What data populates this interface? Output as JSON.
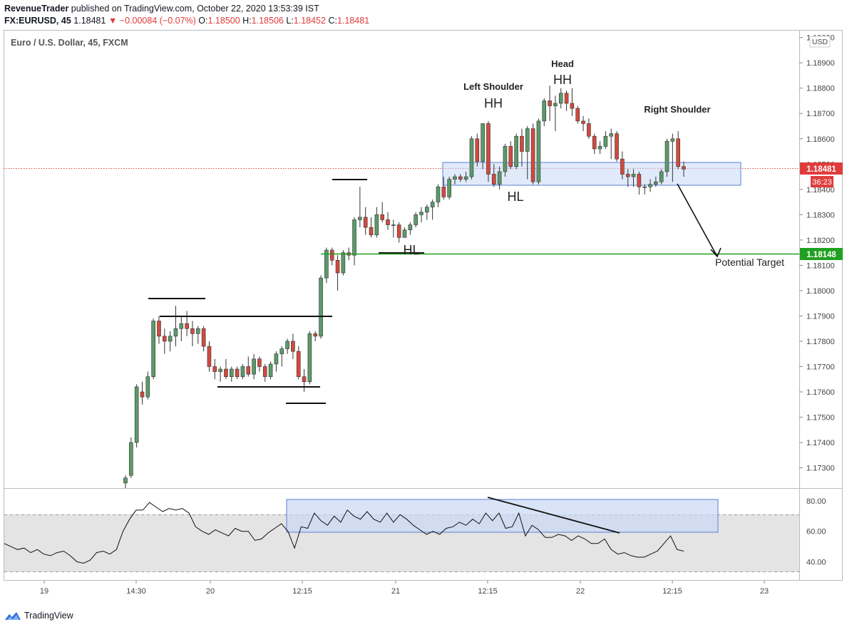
{
  "header": {
    "publisher": "RevenueTrader",
    "published_text": " published on TradingView.com, October 22, 2020 13:53:39 IST",
    "symbol": "FX:EURUSD, 45",
    "last": "1.18481",
    "change": "▼ −0.00084 (−0.07%)",
    "o_label": "O:",
    "o_val": "1.18500",
    "h_label": "H:",
    "h_val": "1.18506",
    "l_label": "L:",
    "l_val": "1.18452",
    "c_label": "C:",
    "c_val": "1.18481"
  },
  "chart_title": "Euro / U.S. Dollar, 45, FXCM",
  "currency_label": "USD",
  "price_badge": {
    "value": "1.18481",
    "timer": "36:23",
    "color": "#e03c3c"
  },
  "target_badge": {
    "value": "1.18148",
    "color": "#20a020"
  },
  "annotations": {
    "left_shoulder": "Left Shoulder",
    "head": "Head",
    "right_shoulder": "Right Shoulder",
    "hh1": "HH",
    "hh2": "HH",
    "hl1": "HL",
    "hl2": "HL",
    "potential_target": "Potential Target"
  },
  "footer": {
    "brand": "TradingView"
  },
  "colors": {
    "up": "#5a9a6a",
    "down": "#d24a3e",
    "box_fill": "#c9d8f5",
    "box_stroke": "#5a7fd6",
    "target_line": "#20a020"
  },
  "chart_data": {
    "type": "candlestick",
    "title": "Euro / U.S. Dollar, 45, FXCM",
    "price_axis": {
      "ticks": [
        "1.19000",
        "1.18900",
        "1.18800",
        "1.18700",
        "1.18600",
        "1.18500",
        "1.18400",
        "1.18300",
        "1.18200",
        "1.18100",
        "1.18000",
        "1.17900",
        "1.17800",
        "1.17700",
        "1.17600",
        "1.17500",
        "1.17400",
        "1.17300"
      ],
      "range": [
        1.1722,
        1.1903
      ]
    },
    "time_axis": {
      "ticks": [
        "19",
        "14:30",
        "20",
        "12:15",
        "21",
        "12:15",
        "22",
        "12:15",
        "23"
      ]
    },
    "candles": [
      [
        1.1724,
        1.1727,
        1.1722,
        1.1726
      ],
      [
        1.1727,
        1.1742,
        1.1726,
        1.174
      ],
      [
        1.174,
        1.1763,
        1.1738,
        1.1762
      ],
      [
        1.176,
        1.1764,
        1.1755,
        1.1758
      ],
      [
        1.1758,
        1.1768,
        1.1757,
        1.1766
      ],
      [
        1.1766,
        1.1789,
        1.1765,
        1.1788
      ],
      [
        1.1788,
        1.179,
        1.1779,
        1.1782
      ],
      [
        1.1782,
        1.1785,
        1.1775,
        1.178
      ],
      [
        1.178,
        1.1784,
        1.1776,
        1.1782
      ],
      [
        1.1782,
        1.1794,
        1.1778,
        1.1785
      ],
      [
        1.1785,
        1.179,
        1.178,
        1.1787
      ],
      [
        1.1787,
        1.1792,
        1.1782,
        1.1785
      ],
      [
        1.1785,
        1.1788,
        1.1778,
        1.1783
      ],
      [
        1.1783,
        1.1786,
        1.1779,
        1.1785
      ],
      [
        1.1785,
        1.1786,
        1.1776,
        1.1778
      ],
      [
        1.1778,
        1.178,
        1.1768,
        1.177
      ],
      [
        1.177,
        1.1773,
        1.1765,
        1.1768
      ],
      [
        1.1768,
        1.177,
        1.1764,
        1.1769
      ],
      [
        1.1769,
        1.1773,
        1.1765,
        1.1766
      ],
      [
        1.1766,
        1.177,
        1.1764,
        1.1769
      ],
      [
        1.1769,
        1.177,
        1.1765,
        1.1766
      ],
      [
        1.1766,
        1.1771,
        1.1765,
        1.177
      ],
      [
        1.177,
        1.1774,
        1.1766,
        1.1767
      ],
      [
        1.1767,
        1.1775,
        1.1765,
        1.1773
      ],
      [
        1.1773,
        1.1774,
        1.1768,
        1.177
      ],
      [
        1.177,
        1.1771,
        1.1764,
        1.1766
      ],
      [
        1.1766,
        1.1772,
        1.1765,
        1.1771
      ],
      [
        1.1771,
        1.1776,
        1.1768,
        1.1775
      ],
      [
        1.1775,
        1.1778,
        1.177,
        1.1777
      ],
      [
        1.1777,
        1.1781,
        1.1775,
        1.178
      ],
      [
        1.178,
        1.1783,
        1.1773,
        1.1776
      ],
      [
        1.1776,
        1.1778,
        1.1765,
        1.1766
      ],
      [
        1.1766,
        1.1769,
        1.176,
        1.1764
      ],
      [
        1.1764,
        1.1784,
        1.1763,
        1.1783
      ],
      [
        1.1783,
        1.1784,
        1.178,
        1.1782
      ],
      [
        1.1782,
        1.1806,
        1.1781,
        1.1805
      ],
      [
        1.1805,
        1.1817,
        1.1803,
        1.1816
      ],
      [
        1.1816,
        1.1817,
        1.181,
        1.1812
      ],
      [
        1.1812,
        1.1814,
        1.18,
        1.1807
      ],
      [
        1.1807,
        1.1816,
        1.1806,
        1.1815
      ],
      [
        1.1815,
        1.1817,
        1.1812,
        1.1814
      ],
      [
        1.1814,
        1.1829,
        1.181,
        1.1828
      ],
      [
        1.1828,
        1.1841,
        1.1825,
        1.1829
      ],
      [
        1.1829,
        1.1833,
        1.1822,
        1.1825
      ],
      [
        1.1825,
        1.1829,
        1.1821,
        1.1822
      ],
      [
        1.1822,
        1.1833,
        1.1821,
        1.183
      ],
      [
        1.183,
        1.1835,
        1.1827,
        1.1828
      ],
      [
        1.1828,
        1.1831,
        1.1824,
        1.1826
      ],
      [
        1.1826,
        1.1828,
        1.1821,
        1.1826
      ],
      [
        1.1826,
        1.1827,
        1.1819,
        1.1821
      ],
      [
        1.1821,
        1.1825,
        1.1821,
        1.1824
      ],
      [
        1.1824,
        1.1827,
        1.1822,
        1.1826
      ],
      [
        1.1826,
        1.1831,
        1.1825,
        1.183
      ],
      [
        1.183,
        1.1833,
        1.1827,
        1.1831
      ],
      [
        1.1831,
        1.1834,
        1.1828,
        1.1833
      ],
      [
        1.1833,
        1.1836,
        1.1828,
        1.1835
      ],
      [
        1.1835,
        1.1842,
        1.1833,
        1.1841
      ],
      [
        1.1841,
        1.1845,
        1.1836,
        1.1837
      ],
      [
        1.1837,
        1.1845,
        1.1836,
        1.1844
      ],
      [
        1.1844,
        1.1846,
        1.1842,
        1.1845
      ],
      [
        1.1845,
        1.1846,
        1.1843,
        1.1844
      ],
      [
        1.1844,
        1.1847,
        1.1843,
        1.1845
      ],
      [
        1.1845,
        1.1861,
        1.1844,
        1.186
      ],
      [
        1.186,
        1.1862,
        1.1849,
        1.1851
      ],
      [
        1.1851,
        1.1866,
        1.1848,
        1.1866
      ],
      [
        1.1866,
        1.1867,
        1.1843,
        1.1846
      ],
      [
        1.1846,
        1.185,
        1.1841,
        1.1842
      ],
      [
        1.1842,
        1.1849,
        1.184,
        1.1847
      ],
      [
        1.1847,
        1.1858,
        1.1845,
        1.1857
      ],
      [
        1.1857,
        1.1859,
        1.1848,
        1.1849
      ],
      [
        1.1849,
        1.1862,
        1.1848,
        1.1861
      ],
      [
        1.1861,
        1.1864,
        1.1849,
        1.1855
      ],
      [
        1.1855,
        1.1865,
        1.1844,
        1.1864
      ],
      [
        1.1864,
        1.1866,
        1.1842,
        1.1843
      ],
      [
        1.1843,
        1.1868,
        1.1842,
        1.1867
      ],
      [
        1.1867,
        1.1876,
        1.1865,
        1.1875
      ],
      [
        1.1875,
        1.1881,
        1.1867,
        1.1873
      ],
      [
        1.1873,
        1.1877,
        1.1863,
        1.1874
      ],
      [
        1.1874,
        1.188,
        1.1872,
        1.1878
      ],
      [
        1.1878,
        1.1879,
        1.1871,
        1.1874
      ],
      [
        1.1874,
        1.188,
        1.1869,
        1.1872
      ],
      [
        1.1872,
        1.1873,
        1.1866,
        1.1867
      ],
      [
        1.1867,
        1.1869,
        1.1863,
        1.1866
      ],
      [
        1.1866,
        1.1868,
        1.186,
        1.1861
      ],
      [
        1.1861,
        1.1862,
        1.1854,
        1.1856
      ],
      [
        1.1856,
        1.1859,
        1.1854,
        1.1857
      ],
      [
        1.1857,
        1.1863,
        1.1856,
        1.1861
      ],
      [
        1.1861,
        1.1864,
        1.1852,
        1.1862
      ],
      [
        1.1862,
        1.1863,
        1.1851,
        1.1852
      ],
      [
        1.1852,
        1.1855,
        1.1844,
        1.1846
      ],
      [
        1.1846,
        1.1848,
        1.1841,
        1.1845
      ],
      [
        1.1845,
        1.1848,
        1.1841,
        1.1846
      ],
      [
        1.1846,
        1.1847,
        1.1838,
        1.1841
      ],
      [
        1.1841,
        1.1842,
        1.1838,
        1.1841
      ],
      [
        1.1841,
        1.1844,
        1.1839,
        1.1842
      ],
      [
        1.1842,
        1.1845,
        1.1841,
        1.1843
      ],
      [
        1.1843,
        1.1848,
        1.1842,
        1.1847
      ],
      [
        1.1847,
        1.186,
        1.1845,
        1.1859
      ],
      [
        1.1859,
        1.1862,
        1.1843,
        1.186
      ],
      [
        1.186,
        1.1863,
        1.1848,
        1.1849
      ],
      [
        1.1849,
        1.1851,
        1.1845,
        1.1848
      ]
    ],
    "rsi": {
      "axis_ticks": [
        "80.00",
        "60.00",
        "40.00"
      ],
      "range": [
        28,
        88
      ],
      "values": [
        52,
        50,
        48,
        49,
        46,
        48,
        45,
        44,
        46,
        47,
        44,
        40,
        39,
        41,
        46,
        47,
        45,
        48,
        60,
        68,
        74,
        74,
        79,
        76,
        73,
        75,
        74,
        75,
        72,
        63,
        60,
        58,
        61,
        59,
        57,
        62,
        60,
        60,
        54,
        55,
        59,
        62,
        65,
        60,
        49,
        63,
        62,
        72,
        67,
        64,
        70,
        66,
        74,
        70,
        68,
        73,
        68,
        66,
        72,
        66,
        71,
        68,
        64,
        61,
        58,
        60,
        58,
        62,
        63,
        66,
        64,
        68,
        65,
        72,
        67,
        72,
        62,
        63,
        72,
        57,
        64,
        61,
        56,
        56,
        58,
        57,
        54,
        57,
        55,
        52,
        52,
        55,
        48,
        45,
        46,
        44,
        43,
        43,
        45,
        47,
        52,
        57,
        48,
        47
      ]
    }
  }
}
